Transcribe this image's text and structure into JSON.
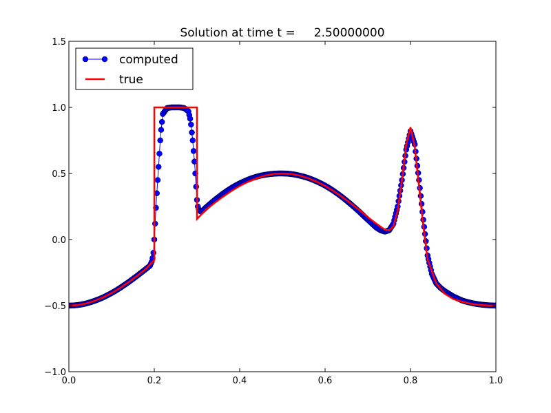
{
  "chart_data": {
    "type": "line",
    "title": "Solution at time t =     2.50000000",
    "xlabel": "",
    "ylabel": "",
    "xlim": [
      0.0,
      1.0
    ],
    "ylim": [
      -1.0,
      1.5
    ],
    "grid": false,
    "legend_position": "top-left",
    "x_ticks": [
      0.0,
      0.2,
      0.4,
      0.6,
      0.8,
      1.0
    ],
    "x_tick_labels": [
      "0.0",
      "0.2",
      "0.4",
      "0.6",
      "0.8",
      "1.0"
    ],
    "y_ticks": [
      -1.0,
      -0.5,
      0.0,
      0.5,
      1.0,
      1.5
    ],
    "y_tick_labels": [
      "−1.0",
      "−0.5",
      "0.0",
      "0.5",
      "1.0",
      "1.5"
    ],
    "series": [
      {
        "name": "computed",
        "style": "line-with-markers",
        "color": "#0000ff",
        "marker_edge_color": "#000033",
        "x": [
          0.0,
          0.01,
          0.02,
          0.03,
          0.04,
          0.05,
          0.06,
          0.07,
          0.08,
          0.09,
          0.1,
          0.11,
          0.12,
          0.13,
          0.14,
          0.15,
          0.16,
          0.17,
          0.18,
          0.19,
          0.195,
          0.198,
          0.2,
          0.202,
          0.205,
          0.21,
          0.215,
          0.22,
          0.23,
          0.24,
          0.25,
          0.26,
          0.27,
          0.28,
          0.285,
          0.29,
          0.295,
          0.298,
          0.3,
          0.302,
          0.305,
          0.31,
          0.32,
          0.33,
          0.34,
          0.35,
          0.36,
          0.37,
          0.38,
          0.39,
          0.4,
          0.41,
          0.42,
          0.43,
          0.44,
          0.45,
          0.46,
          0.47,
          0.48,
          0.49,
          0.5,
          0.51,
          0.52,
          0.53,
          0.54,
          0.55,
          0.56,
          0.57,
          0.58,
          0.59,
          0.6,
          0.61,
          0.62,
          0.63,
          0.64,
          0.65,
          0.66,
          0.67,
          0.68,
          0.69,
          0.7,
          0.71,
          0.72,
          0.73,
          0.74,
          0.75,
          0.76,
          0.77,
          0.78,
          0.79,
          0.8,
          0.81,
          0.82,
          0.83,
          0.84,
          0.85,
          0.86,
          0.87,
          0.88,
          0.89,
          0.9,
          0.91,
          0.92,
          0.93,
          0.94,
          0.95,
          0.96,
          0.97,
          0.98,
          0.99,
          1.0
        ],
        "y": [
          -0.5,
          -0.499,
          -0.496,
          -0.491,
          -0.484,
          -0.475,
          -0.464,
          -0.452,
          -0.438,
          -0.422,
          -0.405,
          -0.386,
          -0.366,
          -0.344,
          -0.322,
          -0.298,
          -0.274,
          -0.249,
          -0.224,
          -0.198,
          -0.16,
          -0.1,
          0.0,
          0.12,
          0.3,
          0.55,
          0.8,
          0.95,
          0.995,
          1.0,
          1.0,
          1.0,
          0.995,
          0.97,
          0.9,
          0.75,
          0.55,
          0.4,
          0.3,
          0.25,
          0.22,
          0.21,
          0.24,
          0.268,
          0.295,
          0.321,
          0.345,
          0.368,
          0.389,
          0.408,
          0.425,
          0.44,
          0.454,
          0.466,
          0.476,
          0.484,
          0.49,
          0.495,
          0.498,
          0.5,
          0.5,
          0.499,
          0.496,
          0.491,
          0.484,
          0.476,
          0.466,
          0.454,
          0.44,
          0.425,
          0.408,
          0.389,
          0.368,
          0.345,
          0.321,
          0.295,
          0.268,
          0.24,
          0.211,
          0.18,
          0.15,
          0.12,
          0.09,
          0.07,
          0.06,
          0.07,
          0.12,
          0.25,
          0.45,
          0.68,
          0.82,
          0.72,
          0.45,
          0.15,
          -0.12,
          -0.26,
          -0.33,
          -0.365,
          -0.39,
          -0.41,
          -0.43,
          -0.445,
          -0.46,
          -0.47,
          -0.478,
          -0.485,
          -0.49,
          -0.494,
          -0.497,
          -0.499,
          -0.5
        ]
      },
      {
        "name": "true",
        "style": "line",
        "color": "#ff0000",
        "x": [
          0.0,
          0.02,
          0.04,
          0.06,
          0.08,
          0.1,
          0.12,
          0.14,
          0.16,
          0.18,
          0.2,
          0.2,
          0.3,
          0.3,
          0.32,
          0.34,
          0.36,
          0.38,
          0.4,
          0.42,
          0.44,
          0.46,
          0.48,
          0.5,
          0.52,
          0.54,
          0.56,
          0.58,
          0.6,
          0.62,
          0.64,
          0.66,
          0.68,
          0.7,
          0.72,
          0.74,
          0.75,
          0.76,
          0.77,
          0.78,
          0.79,
          0.8,
          0.81,
          0.82,
          0.83,
          0.84,
          0.86,
          0.88,
          0.9,
          0.92,
          0.94,
          0.96,
          0.98,
          1.0
        ],
        "y": [
          -0.5,
          -0.496,
          -0.484,
          -0.464,
          -0.438,
          -0.405,
          -0.366,
          -0.322,
          -0.274,
          -0.224,
          -0.155,
          1.0,
          1.0,
          0.155,
          0.224,
          0.274,
          0.322,
          0.366,
          0.405,
          0.438,
          0.464,
          0.484,
          0.496,
          0.5,
          0.496,
          0.484,
          0.464,
          0.438,
          0.405,
          0.366,
          0.322,
          0.274,
          0.224,
          0.17,
          0.12,
          0.075,
          0.07,
          0.1,
          0.22,
          0.45,
          0.72,
          0.85,
          0.7,
          0.4,
          0.1,
          -0.15,
          -0.33,
          -0.41,
          -0.45,
          -0.47,
          -0.485,
          -0.495,
          -0.499,
          -0.5
        ]
      }
    ]
  }
}
